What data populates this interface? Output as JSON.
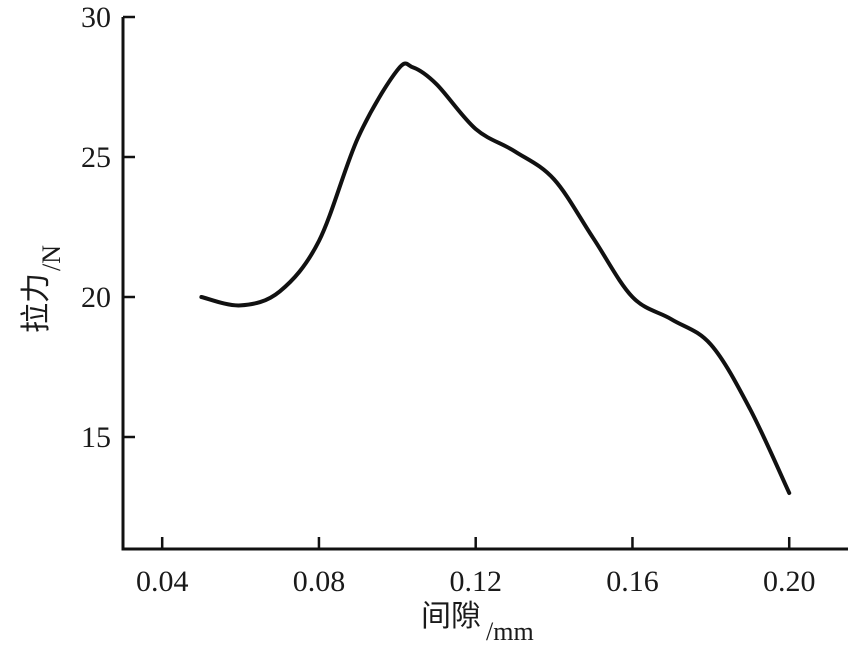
{
  "chart_data": {
    "type": "line",
    "xlabel": "间隙",
    "xunit": "/mm",
    "ylabel": "拉力",
    "yunit": "/N",
    "xlim": [
      0.03,
      0.215
    ],
    "ylim": [
      11,
      30
    ],
    "xticks": [
      0.04,
      0.08,
      0.12,
      0.16,
      0.2
    ],
    "xtick_labels": [
      "0.04",
      "0.08",
      "0.12",
      "0.16",
      "0.20"
    ],
    "yticks": [
      15,
      20,
      25,
      30
    ],
    "ytick_labels": [
      "15",
      "20",
      "25",
      "30"
    ],
    "grid": false,
    "line_color": "#111111",
    "series": [
      {
        "x": [
          0.05,
          0.06,
          0.07,
          0.08,
          0.09,
          0.1,
          0.104,
          0.11,
          0.12,
          0.13,
          0.14,
          0.15,
          0.16,
          0.17,
          0.18,
          0.19,
          0.2
        ],
        "values": [
          20.0,
          19.7,
          20.2,
          22.0,
          25.7,
          28.1,
          28.2,
          27.6,
          26.0,
          25.2,
          24.2,
          22.1,
          20.0,
          19.2,
          18.3,
          16.0,
          13.0
        ]
      }
    ]
  }
}
